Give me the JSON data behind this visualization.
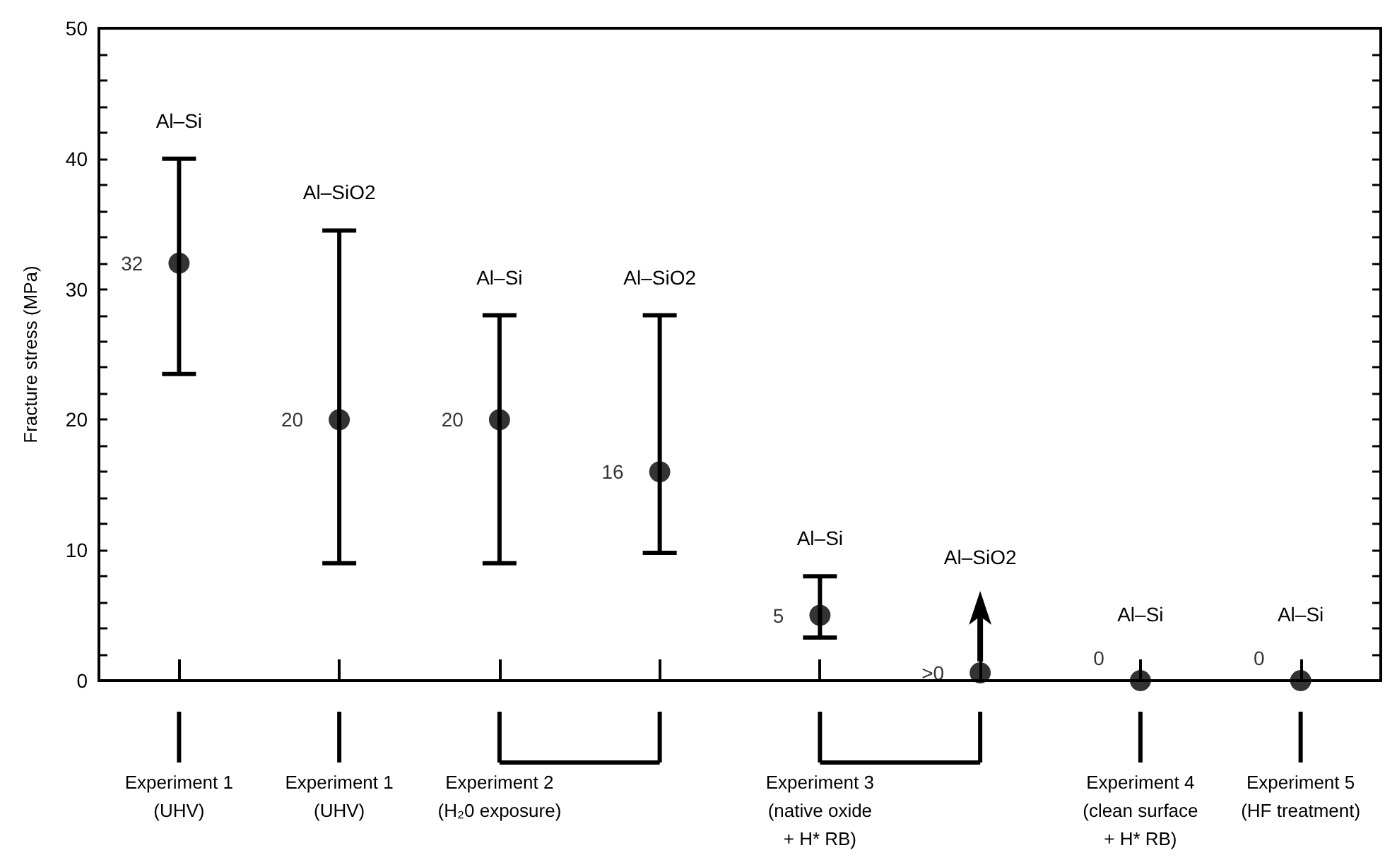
{
  "chart_data": {
    "type": "scatter",
    "ylabel": "Fracture stress (MPa)",
    "categories": [
      "Experiment 1\n(UHV)",
      "Experiment 1\n(UHV)",
      "Experiment 2\n(H₂0 exposure)",
      null,
      "Experiment 3\n(native oxide\n+ H* RB)",
      null,
      "Experiment 4\n(clean surface\n+ H* RB)",
      "Experiment 5\n(HF treatment)"
    ],
    "values": [
      32,
      20,
      20,
      16,
      5,
      0.6,
      0,
      0
    ],
    "value_labels": [
      "32",
      "20",
      "20",
      "16",
      "5",
      ">0",
      "0",
      "0"
    ],
    "errors": [
      [
        23.5,
        40
      ],
      [
        9,
        34.5
      ],
      [
        9,
        28
      ],
      [
        9.8,
        28
      ],
      [
        3.3,
        8
      ],
      null,
      null,
      null
    ],
    "color": "#000000",
    "marker": "circle",
    "annotations": [
      "Al–Si",
      "Al–SiO2",
      "Al–Si",
      "Al–SiO2",
      "Al–Si",
      "Al–SiO2",
      "Al–Si",
      "Al–Si"
    ],
    "ylim": [
      0,
      50
    ],
    "yticks": [
      0,
      {
        "value": 2,
        "label": null
      },
      {
        "value": 4,
        "label": null
      },
      {
        "value": 6,
        "label": null
      },
      {
        "value": 8,
        "label": null
      },
      10,
      {
        "value": 12,
        "label": null
      },
      {
        "value": 14,
        "label": null
      },
      {
        "value": 16,
        "label": null
      },
      {
        "value": 18,
        "label": null
      },
      20,
      {
        "value": 22,
        "label": null
      },
      {
        "value": 24,
        "label": null
      },
      {
        "value": 26,
        "label": null
      },
      {
        "value": 28,
        "label": null
      },
      30,
      {
        "value": 32,
        "label": null
      },
      {
        "value": 34,
        "label": null
      },
      {
        "value": 36,
        "label": null
      },
      {
        "value": 38,
        "label": null
      },
      40,
      {
        "value": 42,
        "label": null
      },
      {
        "value": 44,
        "label": null
      },
      {
        "value": 46,
        "label": null
      },
      {
        "value": 48,
        "label": null
      },
      50
    ],
    "grid": false
  }
}
